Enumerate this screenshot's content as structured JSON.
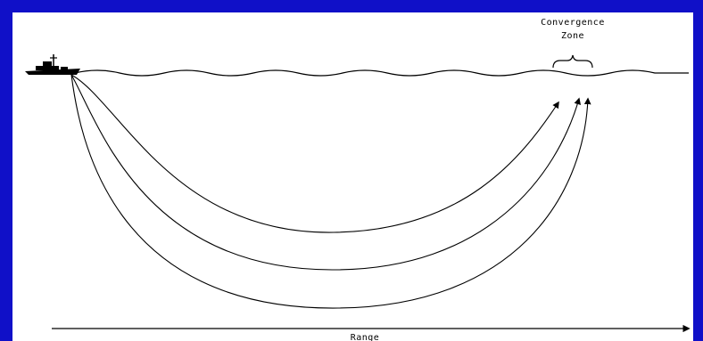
{
  "diagram": {
    "labels": {
      "convergence_line1": "Convergence",
      "convergence_line2": "Zone",
      "range": "Range"
    },
    "colors": {
      "frame": "#1010c8",
      "background": "#ffffff",
      "ink": "#000000"
    },
    "icons": {
      "ship": "ship-icon"
    }
  }
}
